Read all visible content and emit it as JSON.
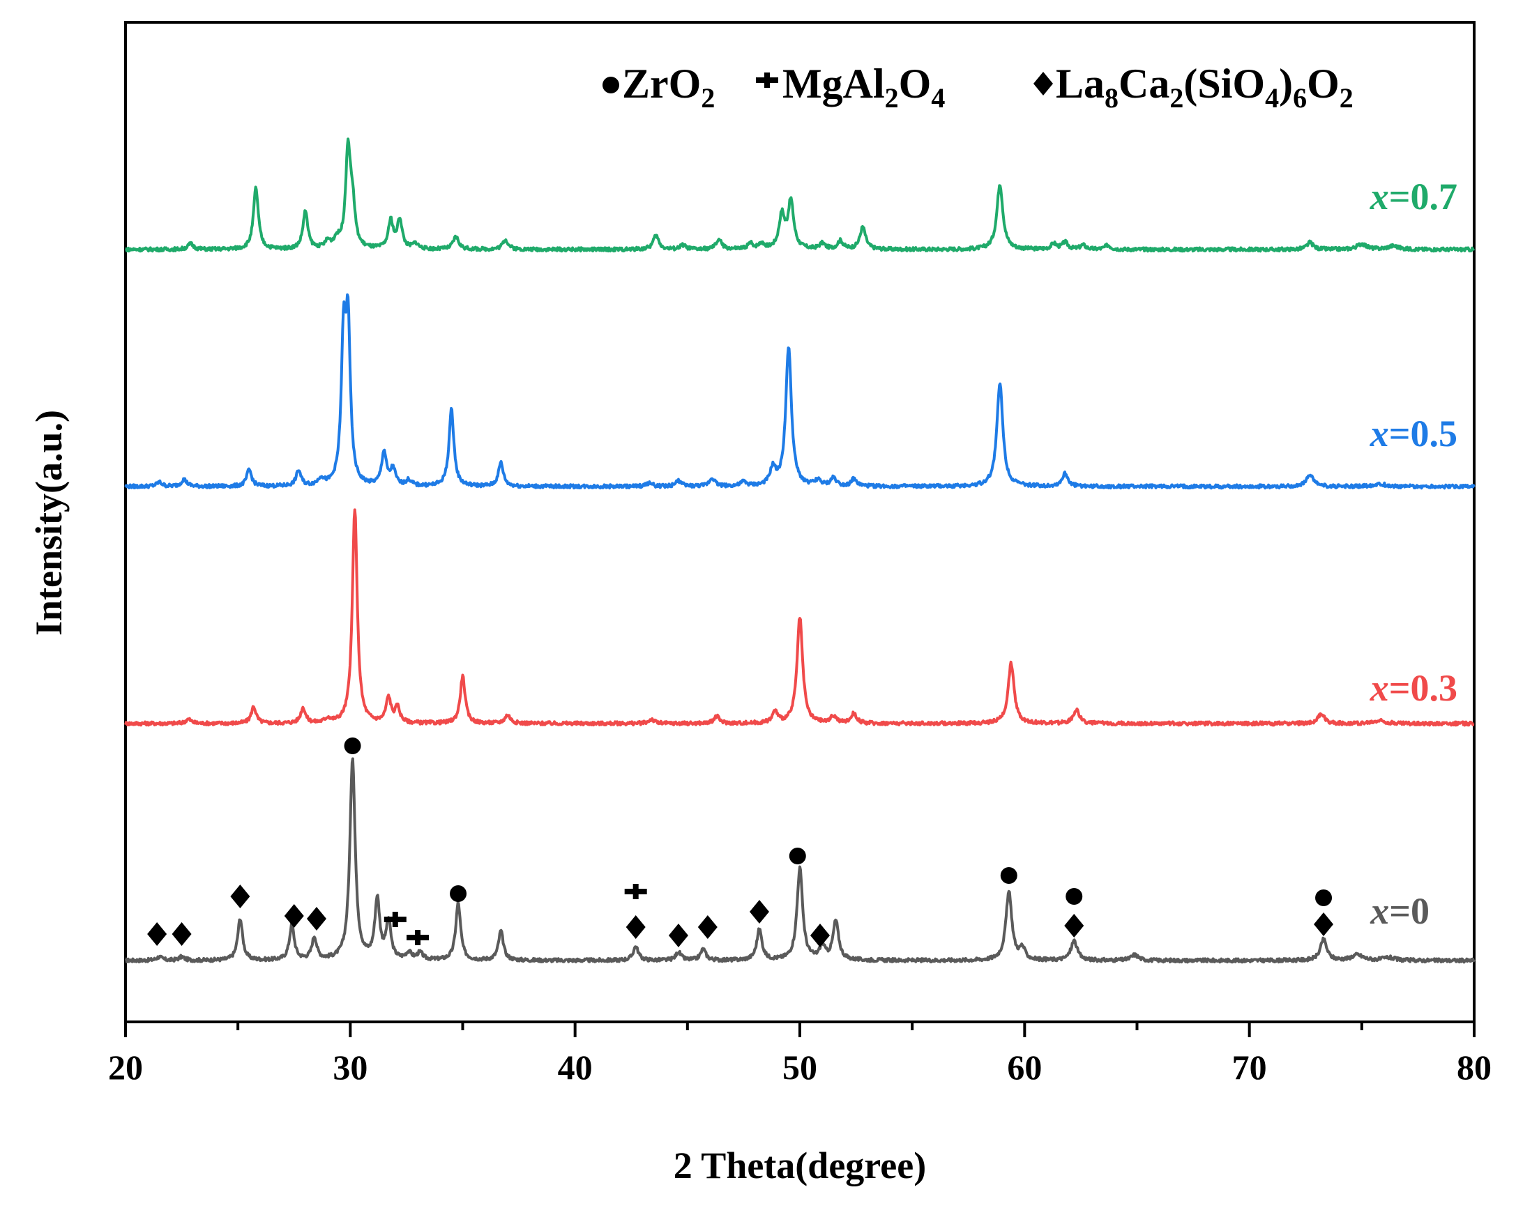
{
  "chart_data": {
    "type": "line",
    "xlabel": "2 Theta(degree)",
    "ylabel": "Intensity(a.u.)",
    "xlim": [
      20,
      80
    ],
    "xticks": [
      "20",
      "30",
      "40",
      "50",
      "60",
      "70",
      "80"
    ],
    "grid": false,
    "legend": {
      "placement": "top-right",
      "entries": [
        {
          "symbol": "circle",
          "base": "ZrO",
          "sub": "2"
        },
        {
          "symbol": "club",
          "base": "MgAl",
          "sub1": "2",
          "mid": "O",
          "sub2": "4"
        },
        {
          "symbol": "diamond",
          "parts": [
            "La",
            "8",
            "Ca",
            "2",
            "(SiO",
            "4",
            ")",
            "6",
            "O",
            "2"
          ]
        }
      ]
    },
    "series": [
      {
        "name": "x=0",
        "label_var": "x",
        "label_rest": "=0",
        "color": "#5a5a5a",
        "baseline": 0,
        "noise": 2.5,
        "peaks": [
          [
            21.5,
            5,
            0.15
          ],
          [
            22.5,
            5,
            0.15
          ],
          [
            25.1,
            60,
            0.13
          ],
          [
            27.4,
            50,
            0.13
          ],
          [
            28.4,
            32,
            0.13
          ],
          [
            30.1,
            290,
            0.14
          ],
          [
            31.2,
            86,
            0.13
          ],
          [
            31.7,
            54,
            0.13
          ],
          [
            32.6,
            10,
            0.15
          ],
          [
            33.1,
            10,
            0.15
          ],
          [
            34.8,
            82,
            0.13
          ],
          [
            36.7,
            42,
            0.13
          ],
          [
            42.7,
            20,
            0.14
          ],
          [
            44.6,
            12,
            0.14
          ],
          [
            45.7,
            16,
            0.14
          ],
          [
            48.2,
            44,
            0.14
          ],
          [
            50.0,
            132,
            0.15
          ],
          [
            51.0,
            20,
            0.14
          ],
          [
            51.6,
            56,
            0.15
          ],
          [
            59.3,
            98,
            0.16
          ],
          [
            59.9,
            16,
            0.14
          ],
          [
            62.2,
            28,
            0.17
          ],
          [
            64.9,
            8,
            0.2
          ],
          [
            73.3,
            30,
            0.17
          ],
          [
            74.8,
            8,
            0.3
          ],
          [
            76.2,
            4,
            0.3
          ]
        ],
        "markers": [
          {
            "shape": "diamond",
            "x": 21.4,
            "y": 38
          },
          {
            "shape": "diamond",
            "x": 22.5,
            "y": 38
          },
          {
            "shape": "diamond",
            "x": 25.1,
            "y": 92
          },
          {
            "shape": "diamond",
            "x": 27.5,
            "y": 64
          },
          {
            "shape": "diamond",
            "x": 28.5,
            "y": 60
          },
          {
            "shape": "circle",
            "x": 30.1,
            "y": 308
          },
          {
            "shape": "club",
            "x": 32.0,
            "y": 54
          },
          {
            "shape": "club",
            "x": 33.0,
            "y": 28
          },
          {
            "shape": "circle",
            "x": 34.8,
            "y": 96
          },
          {
            "shape": "club",
            "x": 42.7,
            "y": 94
          },
          {
            "shape": "diamond",
            "x": 42.7,
            "y": 48
          },
          {
            "shape": "diamond",
            "x": 44.6,
            "y": 36
          },
          {
            "shape": "diamond",
            "x": 45.9,
            "y": 48
          },
          {
            "shape": "diamond",
            "x": 48.2,
            "y": 70
          },
          {
            "shape": "circle",
            "x": 49.9,
            "y": 150
          },
          {
            "shape": "diamond",
            "x": 50.9,
            "y": 36
          },
          {
            "shape": "circle",
            "x": 59.3,
            "y": 122
          },
          {
            "shape": "circle",
            "x": 62.2,
            "y": 92
          },
          {
            "shape": "diamond",
            "x": 62.2,
            "y": 50
          },
          {
            "shape": "circle",
            "x": 73.3,
            "y": 90
          },
          {
            "shape": "diamond",
            "x": 73.3,
            "y": 52
          }
        ]
      },
      {
        "name": "x=0.3",
        "label_var": "x",
        "label_rest": "=0.3",
        "color": "#f04a4a",
        "baseline": 340,
        "noise": 2.5,
        "peaks": [
          [
            22.8,
            6,
            0.15
          ],
          [
            25.7,
            24,
            0.13
          ],
          [
            27.9,
            22,
            0.13
          ],
          [
            29.0,
            6,
            0.15
          ],
          [
            30.2,
            308,
            0.13
          ],
          [
            31.7,
            36,
            0.13
          ],
          [
            32.1,
            22,
            0.13
          ],
          [
            35.0,
            68,
            0.13
          ],
          [
            37.0,
            12,
            0.15
          ],
          [
            43.4,
            6,
            0.15
          ],
          [
            46.3,
            10,
            0.15
          ],
          [
            48.9,
            16,
            0.15
          ],
          [
            50.0,
            152,
            0.15
          ],
          [
            51.5,
            10,
            0.15
          ],
          [
            52.4,
            14,
            0.15
          ],
          [
            59.4,
            86,
            0.16
          ],
          [
            62.3,
            20,
            0.16
          ],
          [
            73.2,
            14,
            0.17
          ],
          [
            75.8,
            4,
            0.3
          ]
        ],
        "markers": []
      },
      {
        "name": "x=0.5",
        "label_var": "x",
        "label_rest": "=0.5",
        "color": "#1e7be6",
        "baseline": 680,
        "noise": 2.5,
        "peaks": [
          [
            21.5,
            6,
            0.15
          ],
          [
            22.6,
            10,
            0.15
          ],
          [
            25.5,
            24,
            0.13
          ],
          [
            27.7,
            22,
            0.13
          ],
          [
            28.7,
            10,
            0.15
          ],
          [
            29.7,
            200,
            0.12
          ],
          [
            29.9,
            220,
            0.12
          ],
          [
            31.5,
            48,
            0.13
          ],
          [
            31.9,
            24,
            0.13
          ],
          [
            32.6,
            8,
            0.15
          ],
          [
            34.5,
            110,
            0.13
          ],
          [
            36.7,
            34,
            0.13
          ],
          [
            43.3,
            5,
            0.15
          ],
          [
            44.6,
            8,
            0.15
          ],
          [
            46.1,
            12,
            0.15
          ],
          [
            47.5,
            6,
            0.15
          ],
          [
            48.8,
            24,
            0.15
          ],
          [
            49.5,
            200,
            0.15
          ],
          [
            50.8,
            8,
            0.15
          ],
          [
            51.5,
            12,
            0.15
          ],
          [
            52.4,
            10,
            0.15
          ],
          [
            58.9,
            148,
            0.16
          ],
          [
            61.8,
            18,
            0.16
          ],
          [
            72.7,
            18,
            0.17
          ],
          [
            75.8,
            4,
            0.3
          ]
        ],
        "markers": []
      },
      {
        "name": "x=0.7",
        "label_var": "x",
        "label_rest": "=0.7",
        "color": "#1faa6a",
        "baseline": 1020,
        "noise": 2.5,
        "peaks": [
          [
            22.9,
            8,
            0.15
          ],
          [
            25.8,
            88,
            0.13
          ],
          [
            28.0,
            54,
            0.13
          ],
          [
            29.0,
            10,
            0.15
          ],
          [
            29.4,
            12,
            0.15
          ],
          [
            29.9,
            140,
            0.13
          ],
          [
            30.1,
            56,
            0.13
          ],
          [
            31.8,
            40,
            0.13
          ],
          [
            32.2,
            42,
            0.13
          ],
          [
            32.9,
            8,
            0.15
          ],
          [
            34.7,
            18,
            0.15
          ],
          [
            36.9,
            14,
            0.15
          ],
          [
            43.6,
            20,
            0.15
          ],
          [
            44.8,
            6,
            0.15
          ],
          [
            46.4,
            14,
            0.15
          ],
          [
            47.8,
            8,
            0.15
          ],
          [
            48.3,
            8,
            0.15
          ],
          [
            49.2,
            48,
            0.15
          ],
          [
            49.6,
            68,
            0.15
          ],
          [
            51.0,
            8,
            0.15
          ],
          [
            51.8,
            12,
            0.15
          ],
          [
            52.8,
            32,
            0.15
          ],
          [
            58.9,
            94,
            0.16
          ],
          [
            61.3,
            8,
            0.15
          ],
          [
            61.8,
            10,
            0.15
          ],
          [
            62.6,
            6,
            0.15
          ],
          [
            63.7,
            6,
            0.15
          ],
          [
            72.7,
            10,
            0.17
          ],
          [
            75.0,
            8,
            0.25
          ],
          [
            76.4,
            5,
            0.3
          ]
        ],
        "markers": []
      }
    ]
  }
}
